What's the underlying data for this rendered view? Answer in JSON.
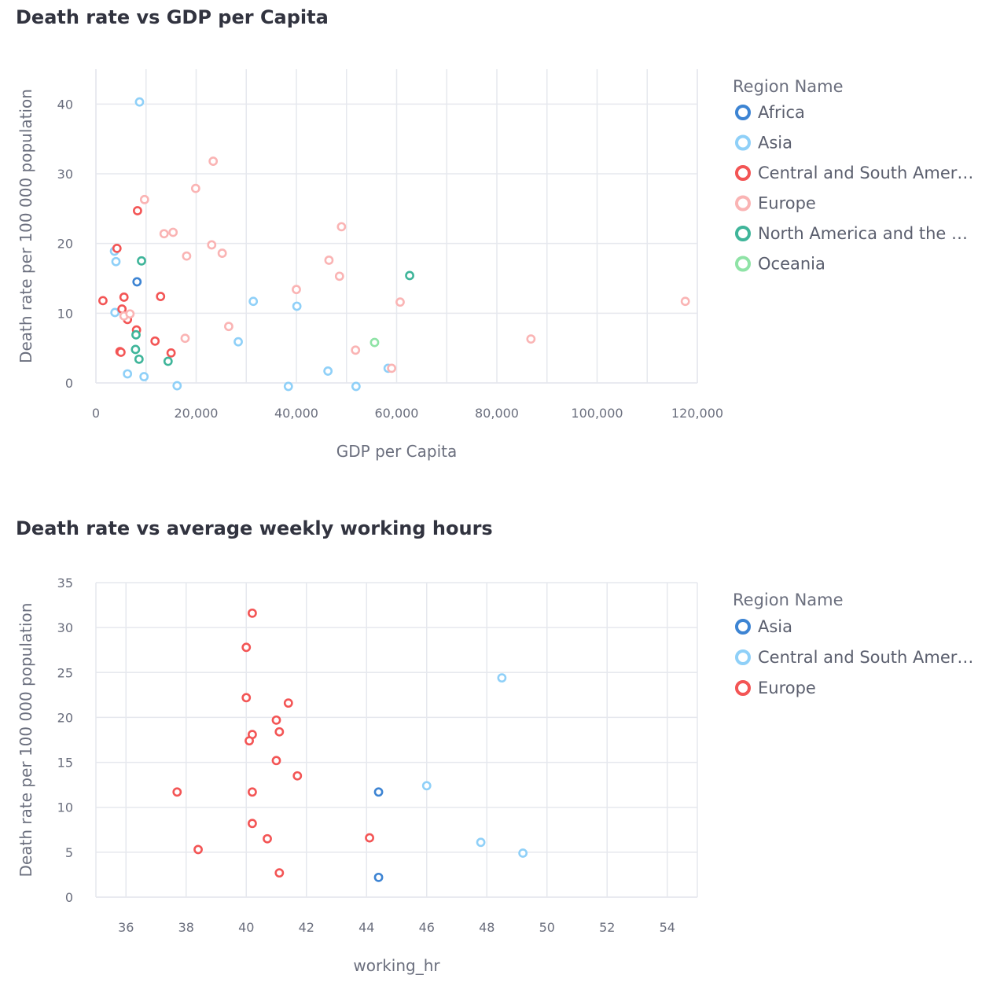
{
  "charts": [
    {
      "title": "Death rate vs GDP per Capita",
      "chart_data": {
        "type": "scatter",
        "title": "Death rate vs GDP per Capita",
        "xlabel": "GDP per Capita",
        "ylabel": "Death rate per 100 000 population",
        "xlim": [
          0,
          120000
        ],
        "ylim": [
          0,
          45
        ],
        "xticks": [
          0,
          20000,
          40000,
          60000,
          80000,
          100000,
          120000
        ],
        "xtick_labels": [
          "0",
          "20,000",
          "40,000",
          "60,000",
          "80,000",
          "100,000",
          "120,000"
        ],
        "yticks": [
          0,
          10,
          20,
          30,
          40
        ],
        "ytick_labels": [
          "0",
          "10",
          "20",
          "30",
          "40"
        ],
        "grid": true,
        "legend_title": "Region Name",
        "legend_position": "right",
        "series": [
          {
            "name": "Africa",
            "color": "#3d84d3",
            "points": [
              [
                8200,
                14.5
              ]
            ]
          },
          {
            "name": "Asia",
            "color": "#8fd0f8",
            "points": [
              [
                8700,
                40.3
              ],
              [
                3700,
                18.9
              ],
              [
                4000,
                17.4
              ],
              [
                3800,
                10.1
              ],
              [
                6300,
                1.3
              ],
              [
                9600,
                0.9
              ],
              [
                16200,
                -0.4
              ],
              [
                28400,
                5.9
              ],
              [
                31400,
                11.7
              ],
              [
                38400,
                -0.5
              ],
              [
                40100,
                11.0
              ],
              [
                46300,
                1.7
              ],
              [
                51900,
                -0.5
              ],
              [
                58300,
                2.1
              ]
            ]
          },
          {
            "name": "Central and South America",
            "color": "#f35555",
            "points": [
              [
                8300,
                24.7
              ],
              [
                4200,
                19.3
              ],
              [
                1400,
                11.8
              ],
              [
                5600,
                12.3
              ],
              [
                5200,
                10.6
              ],
              [
                6300,
                9.1
              ],
              [
                8100,
                7.6
              ],
              [
                4800,
                4.5
              ],
              [
                5000,
                4.4
              ],
              [
                11800,
                6.0
              ],
              [
                12900,
                12.4
              ],
              [
                15000,
                4.3
              ]
            ]
          },
          {
            "name": "Europe",
            "color": "#fab4b4",
            "points": [
              [
                23400,
                31.8
              ],
              [
                9700,
                26.3
              ],
              [
                19900,
                27.9
              ],
              [
                13600,
                21.4
              ],
              [
                15400,
                21.6
              ],
              [
                18100,
                18.2
              ],
              [
                23100,
                19.8
              ],
              [
                25200,
                18.6
              ],
              [
                5600,
                9.6
              ],
              [
                6800,
                9.9
              ],
              [
                17800,
                6.4
              ],
              [
                26500,
                8.1
              ],
              [
                40000,
                13.4
              ],
              [
                46500,
                17.6
              ],
              [
                48600,
                15.3
              ],
              [
                49000,
                22.4
              ],
              [
                51800,
                4.7
              ],
              [
                59000,
                2.1
              ],
              [
                60700,
                11.6
              ],
              [
                86800,
                6.3
              ],
              [
                117600,
                11.7
              ]
            ]
          },
          {
            "name": "North America and the Caribbean",
            "color": "#3fb59a",
            "points": [
              [
                9100,
                17.5
              ],
              [
                8000,
                6.9
              ],
              [
                7900,
                4.8
              ],
              [
                8600,
                3.4
              ],
              [
                14400,
                3.1
              ],
              [
                62600,
                15.4
              ]
            ]
          },
          {
            "name": "Oceania",
            "color": "#8fe3a6",
            "points": [
              [
                55600,
                5.8
              ]
            ]
          }
        ]
      }
    },
    {
      "title": "Death rate vs average weekly working hours",
      "chart_data": {
        "type": "scatter",
        "title": "Death rate vs average weekly working hours",
        "xlabel": "working_hr",
        "ylabel": "Death rate per 100 000 population",
        "xlim": [
          35,
          55
        ],
        "ylim": [
          0,
          35
        ],
        "xticks": [
          36,
          38,
          40,
          42,
          44,
          46,
          48,
          50,
          52,
          54
        ],
        "xtick_labels": [
          "36",
          "38",
          "40",
          "42",
          "44",
          "46",
          "48",
          "50",
          "52",
          "54"
        ],
        "yticks": [
          0,
          5,
          10,
          15,
          20,
          25,
          30,
          35
        ],
        "ytick_labels": [
          "0",
          "5",
          "10",
          "15",
          "20",
          "25",
          "30",
          "35"
        ],
        "grid": true,
        "legend_title": "Region Name",
        "legend_position": "right",
        "series": [
          {
            "name": "Asia",
            "color": "#3d84d3",
            "points": [
              [
                44.4,
                11.7
              ],
              [
                44.4,
                2.2
              ]
            ]
          },
          {
            "name": "Central and South America",
            "color": "#8fd0f8",
            "points": [
              [
                48.5,
                24.4
              ],
              [
                46.0,
                12.4
              ],
              [
                47.8,
                6.1
              ],
              [
                49.2,
                4.9
              ]
            ]
          },
          {
            "name": "Europe",
            "color": "#f35555",
            "points": [
              [
                40.2,
                31.6
              ],
              [
                40.0,
                27.8
              ],
              [
                40.0,
                22.2
              ],
              [
                41.4,
                21.6
              ],
              [
                41.0,
                19.7
              ],
              [
                41.1,
                18.4
              ],
              [
                40.2,
                18.1
              ],
              [
                40.1,
                17.4
              ],
              [
                41.0,
                15.2
              ],
              [
                41.7,
                13.5
              ],
              [
                37.7,
                11.7
              ],
              [
                40.2,
                11.7
              ],
              [
                40.2,
                8.2
              ],
              [
                40.7,
                6.5
              ],
              [
                44.1,
                6.6
              ],
              [
                38.4,
                5.3
              ],
              [
                41.1,
                2.7
              ]
            ]
          }
        ]
      }
    }
  ]
}
